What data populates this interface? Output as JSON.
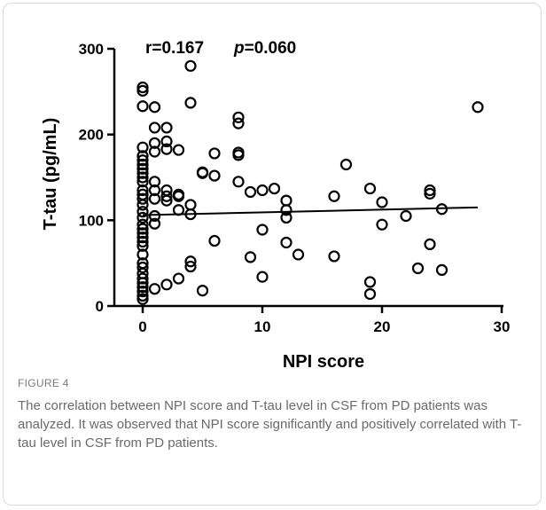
{
  "figure": {
    "label": "FIGURE 4",
    "caption": "The correlation between NPI score and T-tau level in CSF from PD patients was analyzed. It was observed that NPI score significantly and positively correlated with T-tau level in CSF from PD patients."
  },
  "chart_data": {
    "type": "scatter",
    "xlabel": "NPI score",
    "ylabel": "T-tau (pg/mL)",
    "xlim": [
      0,
      30
    ],
    "ylim": [
      0,
      300
    ],
    "xticks": [
      "0",
      "10",
      "20",
      "30"
    ],
    "yticks": [
      "0",
      "100",
      "200",
      "300"
    ],
    "annotation": {
      "r_text": "r=0.167",
      "p_label": "p",
      "p_value": "=0.060"
    },
    "regression_line": {
      "x": [
        0,
        28
      ],
      "y": [
        106,
        115
      ]
    },
    "points": [
      [
        0,
        255
      ],
      [
        0,
        251
      ],
      [
        0,
        233
      ],
      [
        0,
        185
      ],
      [
        0,
        175
      ],
      [
        0,
        170
      ],
      [
        0,
        165
      ],
      [
        0,
        160
      ],
      [
        0,
        155
      ],
      [
        0,
        150
      ],
      [
        0,
        145
      ],
      [
        0,
        135
      ],
      [
        0,
        130
      ],
      [
        0,
        125
      ],
      [
        0,
        118
      ],
      [
        0,
        110
      ],
      [
        0,
        103
      ],
      [
        0,
        95
      ],
      [
        0,
        90
      ],
      [
        0,
        85
      ],
      [
        0,
        80
      ],
      [
        0,
        75
      ],
      [
        0,
        70
      ],
      [
        0,
        60
      ],
      [
        0,
        50
      ],
      [
        0,
        45
      ],
      [
        0,
        38
      ],
      [
        0,
        32
      ],
      [
        0,
        27
      ],
      [
        0,
        22
      ],
      [
        0,
        17
      ],
      [
        0,
        12
      ],
      [
        0,
        8
      ],
      [
        1,
        232
      ],
      [
        1,
        208
      ],
      [
        1,
        190
      ],
      [
        1,
        180
      ],
      [
        1,
        145
      ],
      [
        1,
        135
      ],
      [
        1,
        125
      ],
      [
        1,
        105
      ],
      [
        1,
        96
      ],
      [
        1,
        20
      ],
      [
        2,
        208
      ],
      [
        2,
        192
      ],
      [
        2,
        183
      ],
      [
        2,
        135
      ],
      [
        2,
        128
      ],
      [
        2,
        123
      ],
      [
        2,
        25
      ],
      [
        3,
        182
      ],
      [
        3,
        130
      ],
      [
        3,
        128
      ],
      [
        3,
        112
      ],
      [
        3,
        32
      ],
      [
        4,
        280
      ],
      [
        4,
        237
      ],
      [
        4,
        118
      ],
      [
        4,
        107
      ],
      [
        4,
        52
      ],
      [
        4,
        46
      ],
      [
        5,
        156
      ],
      [
        5,
        155
      ],
      [
        5,
        18
      ],
      [
        6,
        178
      ],
      [
        6,
        152
      ],
      [
        6,
        76
      ],
      [
        8,
        220
      ],
      [
        8,
        213
      ],
      [
        8,
        179
      ],
      [
        8,
        176
      ],
      [
        8,
        145
      ],
      [
        9,
        133
      ],
      [
        9,
        57
      ],
      [
        10,
        135
      ],
      [
        10,
        89
      ],
      [
        10,
        34
      ],
      [
        11,
        137
      ],
      [
        12,
        123
      ],
      [
        12,
        112
      ],
      [
        12,
        103
      ],
      [
        12,
        74
      ],
      [
        13,
        60
      ],
      [
        16,
        128
      ],
      [
        16,
        58
      ],
      [
        17,
        165
      ],
      [
        19,
        137
      ],
      [
        19,
        28
      ],
      [
        19,
        14
      ],
      [
        20,
        121
      ],
      [
        20,
        95
      ],
      [
        22,
        105
      ],
      [
        23,
        44
      ],
      [
        24,
        135
      ],
      [
        24,
        131
      ],
      [
        24,
        72
      ],
      [
        25,
        113
      ],
      [
        25,
        42
      ],
      [
        28,
        232
      ]
    ]
  }
}
